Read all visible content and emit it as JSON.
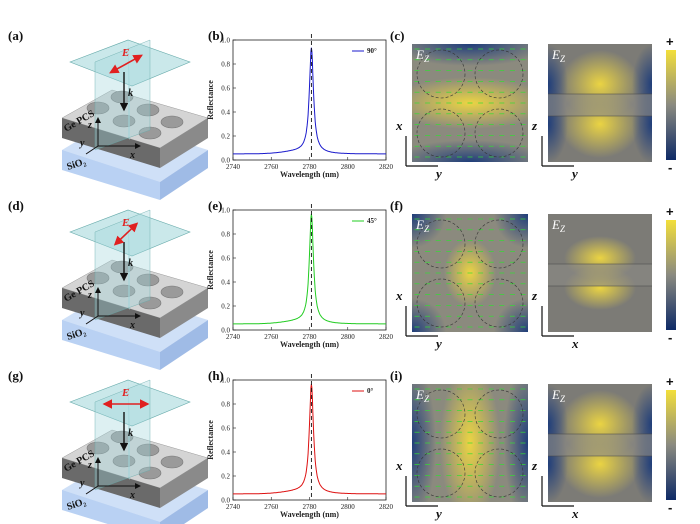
{
  "rows": [
    {
      "labels": {
        "schematic": "(a)",
        "spectrum": "(b)",
        "fields": "(c)"
      },
      "polarization": "90°",
      "line_color": "#1a1acc",
      "e_angle_deg": -45,
      "plane_labels": {
        "left": [
          "x",
          "y"
        ],
        "right": [
          "z",
          "y"
        ]
      }
    },
    {
      "labels": {
        "schematic": "(d)",
        "spectrum": "(e)",
        "fields": "(f)"
      },
      "polarization": "45°",
      "line_color": "#22cc22",
      "e_angle_deg": -60,
      "plane_labels": {
        "left": [
          "x",
          "y"
        ],
        "right": [
          "z",
          "x"
        ]
      }
    },
    {
      "labels": {
        "schematic": "(g)",
        "spectrum": "(h)",
        "fields": "(i)"
      },
      "polarization": "0°",
      "line_color": "#dd1111",
      "e_angle_deg": 0,
      "plane_labels": {
        "left": [
          "x",
          "y"
        ],
        "right": [
          "z",
          "x"
        ]
      }
    }
  ],
  "schematic_text": {
    "layer_top": "Ge PCS",
    "layer_bottom": "SiO₂",
    "e_label": "E",
    "k_label": "k",
    "axis_z": "z",
    "axis_y": "y",
    "axis_x": "x"
  },
  "field_label": "E",
  "field_subscript": "Z",
  "colorbar": {
    "plus": "+",
    "minus": "-"
  },
  "chart_data": [
    {
      "type": "line",
      "panel": "(b)",
      "series": [
        {
          "name": "90°",
          "x_range": [
            2740,
            2820
          ],
          "peak_wavelength": 2781,
          "peak_reflectance": 0.92,
          "baseline_reflectance": 0.05
        }
      ],
      "xlabel": "Wavelength (nm)",
      "ylabel": "Reflectance",
      "xlim": [
        2740,
        2820
      ],
      "ylim": [
        0,
        1.0
      ],
      "xticks": [
        "2740",
        "2760",
        "2780",
        "2800",
        "2820"
      ],
      "yticks": [
        "0.0",
        "0.2",
        "0.4",
        "0.6",
        "0.8",
        "1.0"
      ],
      "marker_line_x": 2781
    },
    {
      "type": "line",
      "panel": "(e)",
      "series": [
        {
          "name": "45°",
          "x_range": [
            2740,
            2820
          ],
          "peak_wavelength": 2781,
          "peak_reflectance": 0.95,
          "baseline_reflectance": 0.05
        }
      ],
      "xlabel": "Wavelength (nm)",
      "ylabel": "Reflectance",
      "xlim": [
        2740,
        2820
      ],
      "ylim": [
        0,
        1.0
      ],
      "xticks": [
        "2740",
        "2760",
        "2780",
        "2800",
        "2820"
      ],
      "yticks": [
        "0.0",
        "0.2",
        "0.4",
        "0.6",
        "0.8",
        "1.0"
      ],
      "marker_line_x": 2781
    },
    {
      "type": "line",
      "panel": "(h)",
      "series": [
        {
          "name": "0°",
          "x_range": [
            2740,
            2820
          ],
          "peak_wavelength": 2781,
          "peak_reflectance": 0.95,
          "baseline_reflectance": 0.05
        }
      ],
      "xlabel": "Wavelength (nm)",
      "ylabel": "Reflectance",
      "xlim": [
        2740,
        2820
      ],
      "ylim": [
        0,
        1.0
      ],
      "xticks": [
        "2740",
        "2760",
        "2780",
        "2800",
        "2820"
      ],
      "yticks": [
        "0.0",
        "0.2",
        "0.4",
        "0.6",
        "0.8",
        "1.0"
      ],
      "marker_line_x": 2781
    }
  ]
}
